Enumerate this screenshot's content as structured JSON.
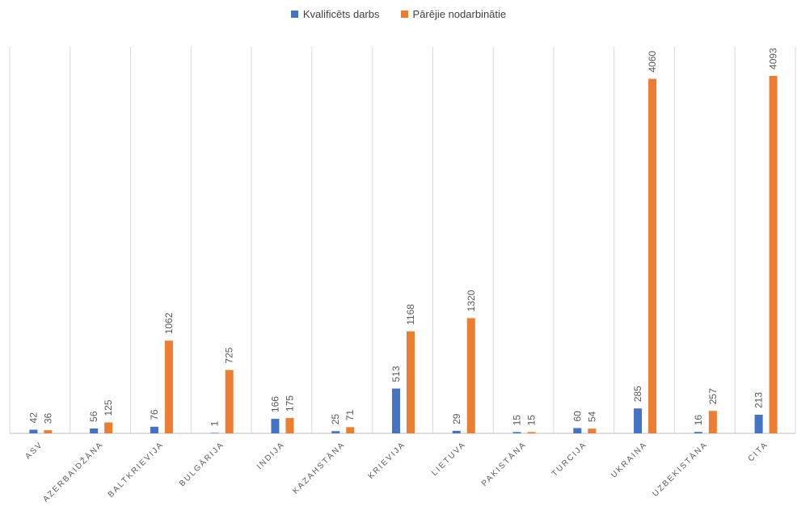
{
  "chart_data": {
    "type": "bar",
    "categories": [
      "ASV",
      "AZERBAIDŽĀNA",
      "BALTKRIEVIJA",
      "BULGĀRIJA",
      "INDIJA",
      "KAZAHSTĀNA",
      "KRIEVIJA",
      "LIETUVA",
      "PAKISTĀNA",
      "TURCIJA",
      "UKRAINA",
      "UZBEKISTĀNA",
      "CITA"
    ],
    "series": [
      {
        "name": "Kvalificēts darbs",
        "color": "#4472C4",
        "values": [
          42,
          56,
          76,
          1,
          166,
          25,
          513,
          29,
          15,
          60,
          285,
          16,
          213
        ]
      },
      {
        "name": "Pārējie nodarbinātie",
        "color": "#ED7D31",
        "values": [
          36,
          125,
          1062,
          725,
          175,
          71,
          1168,
          1320,
          15,
          54,
          4060,
          257,
          4093
        ]
      }
    ],
    "title": "",
    "xlabel": "",
    "ylabel": "",
    "ylim": [
      0,
      4500
    ],
    "legend": "top",
    "grid": "vertical category separators",
    "data_labels": true
  }
}
